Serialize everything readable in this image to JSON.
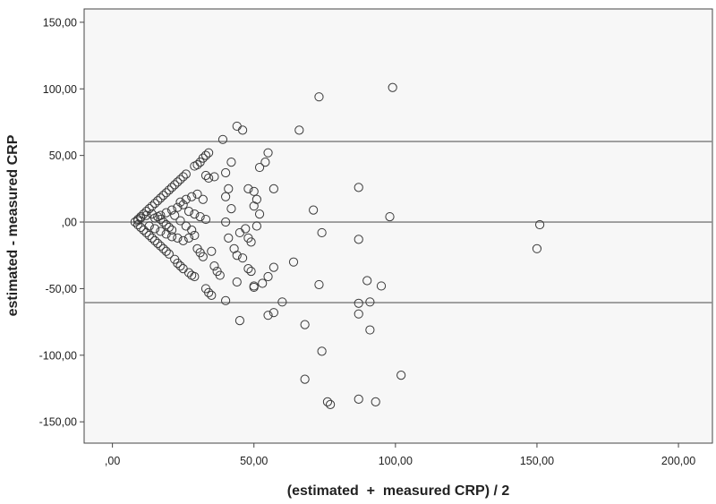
{
  "chart_data": {
    "type": "scatter",
    "title": "",
    "xlabel": "(estimated  +  measured CRP) / 2",
    "ylabel": "estimated - measured CRP",
    "xlim": [
      -10,
      212
    ],
    "ylim": [
      -166,
      160
    ],
    "x_ticks": [
      0,
      50,
      100,
      150,
      200
    ],
    "x_tick_labels": [
      ",00",
      "50,00",
      "100,00",
      "150,00",
      "200,00"
    ],
    "y_ticks": [
      -150,
      -100,
      -50,
      0,
      50,
      100,
      150
    ],
    "y_tick_labels": [
      "-150,00",
      "-100,00",
      "-50,00",
      ",00",
      "50,00",
      "100,00",
      "150,00"
    ],
    "grid": false,
    "reference_lines": [
      60.5,
      0,
      -60.5
    ],
    "colors": {
      "plot_bg": "#f7f7f7",
      "marker": "#3a3a3a",
      "ref_line": "#8c8c8c",
      "frame": "#444444"
    },
    "series": [
      {
        "marker": "open-circle",
        "points": [
          [
            8,
            0
          ],
          [
            9,
            2
          ],
          [
            10,
            4
          ],
          [
            11,
            6
          ],
          [
            12,
            8
          ],
          [
            13,
            10
          ],
          [
            14,
            12
          ],
          [
            15,
            14
          ],
          [
            16,
            16
          ],
          [
            17,
            18
          ],
          [
            18,
            20
          ],
          [
            19,
            22
          ],
          [
            20,
            24
          ],
          [
            21,
            26
          ],
          [
            22,
            28
          ],
          [
            23,
            30
          ],
          [
            24,
            32
          ],
          [
            25,
            34
          ],
          [
            26,
            36
          ],
          [
            9,
            -2
          ],
          [
            10,
            -4
          ],
          [
            11,
            -6
          ],
          [
            12,
            -8
          ],
          [
            13,
            -10
          ],
          [
            14,
            -12
          ],
          [
            15,
            -14
          ],
          [
            16,
            -16
          ],
          [
            17,
            -18
          ],
          [
            18,
            -20
          ],
          [
            19,
            -22
          ],
          [
            20,
            -24
          ],
          [
            22,
            -28
          ],
          [
            23,
            -31
          ],
          [
            24,
            -33
          ],
          [
            25,
            -35
          ],
          [
            27,
            -38
          ],
          [
            28,
            -40
          ],
          [
            29,
            -41
          ],
          [
            9,
            1
          ],
          [
            10,
            3
          ],
          [
            12,
            5
          ],
          [
            14,
            6
          ],
          [
            16,
            4
          ],
          [
            17,
            2
          ],
          [
            18,
            0
          ],
          [
            19,
            -2
          ],
          [
            20,
            -4
          ],
          [
            21,
            -6
          ],
          [
            13,
            -3
          ],
          [
            15,
            -5
          ],
          [
            17,
            -7
          ],
          [
            19,
            -9
          ],
          [
            21,
            -11
          ],
          [
            23,
            -12
          ],
          [
            25,
            -14
          ],
          [
            27,
            -12
          ],
          [
            29,
            -10
          ],
          [
            15,
            3
          ],
          [
            17,
            5
          ],
          [
            19,
            7
          ],
          [
            21,
            9
          ],
          [
            23,
            11
          ],
          [
            25,
            13
          ],
          [
            27,
            8
          ],
          [
            29,
            6
          ],
          [
            31,
            4
          ],
          [
            33,
            2
          ],
          [
            24,
            15
          ],
          [
            26,
            17
          ],
          [
            28,
            19
          ],
          [
            30,
            21
          ],
          [
            32,
            17
          ],
          [
            22,
            5
          ],
          [
            24,
            1
          ],
          [
            26,
            -3
          ],
          [
            28,
            -6
          ],
          [
            29,
            42
          ],
          [
            30,
            43
          ],
          [
            31,
            45
          ],
          [
            32,
            48
          ],
          [
            33,
            50
          ],
          [
            34,
            52
          ],
          [
            33,
            35
          ],
          [
            34,
            33
          ],
          [
            36,
            34
          ],
          [
            30,
            -20
          ],
          [
            31,
            -23
          ],
          [
            32,
            -26
          ],
          [
            35,
            -22
          ],
          [
            33,
            -50
          ],
          [
            34,
            -53
          ],
          [
            35,
            -55
          ],
          [
            40,
            -59
          ],
          [
            38,
            -40
          ],
          [
            37,
            -37
          ],
          [
            36,
            -33
          ],
          [
            39,
            62
          ],
          [
            44,
            72
          ],
          [
            46,
            69
          ],
          [
            42,
            45
          ],
          [
            40,
            37
          ],
          [
            41,
            25
          ],
          [
            40,
            19
          ],
          [
            42,
            10
          ],
          [
            40,
            0
          ],
          [
            41,
            -12
          ],
          [
            43,
            -20
          ],
          [
            44,
            -25
          ],
          [
            46,
            -27
          ],
          [
            44,
            -45
          ],
          [
            45,
            -74
          ],
          [
            45,
            -8
          ],
          [
            47,
            -5
          ],
          [
            48,
            -12
          ],
          [
            49,
            -15
          ],
          [
            48,
            -35
          ],
          [
            49,
            -37
          ],
          [
            50,
            -48
          ],
          [
            50,
            -49
          ],
          [
            50,
            23
          ],
          [
            51,
            17
          ],
          [
            52,
            6
          ],
          [
            51,
            -3
          ],
          [
            52,
            41
          ],
          [
            54,
            45
          ],
          [
            55,
            52
          ],
          [
            57,
            25
          ],
          [
            48,
            25
          ],
          [
            50,
            12
          ],
          [
            53,
            -46
          ],
          [
            55,
            -41
          ],
          [
            57,
            -34
          ],
          [
            55,
            -70
          ],
          [
            57,
            -68
          ],
          [
            60,
            -60
          ],
          [
            64,
            -30
          ],
          [
            66,
            69
          ],
          [
            68,
            -118
          ],
          [
            68,
            -77
          ],
          [
            71,
            9
          ],
          [
            74,
            -8
          ],
          [
            73,
            94
          ],
          [
            73,
            -47
          ],
          [
            74,
            -97
          ],
          [
            76,
            -135
          ],
          [
            77,
            -137
          ],
          [
            87,
            26
          ],
          [
            87,
            -13
          ],
          [
            87,
            -61
          ],
          [
            87,
            -69
          ],
          [
            87,
            -133
          ],
          [
            90,
            -44
          ],
          [
            91,
            -60
          ],
          [
            91,
            -81
          ],
          [
            93,
            -135
          ],
          [
            95,
            -48
          ],
          [
            98,
            4
          ],
          [
            99,
            101
          ],
          [
            102,
            -115
          ],
          [
            151,
            -2
          ],
          [
            150,
            -20
          ]
        ]
      }
    ]
  }
}
